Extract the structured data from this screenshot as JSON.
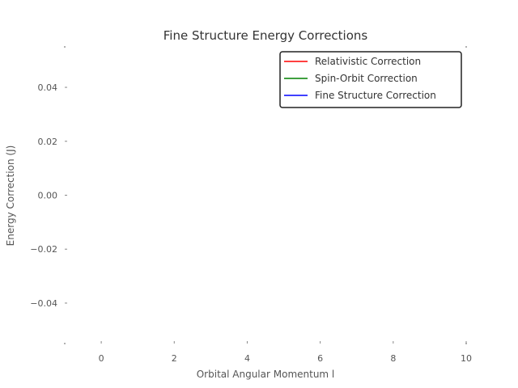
{
  "chart_data": {
    "type": "line",
    "title": "Fine Structure Energy Corrections",
    "xlabel": "Orbital Angular Momentum l",
    "ylabel": "Energy Correction (J)",
    "xlim": [
      -1,
      10
    ],
    "ylim": [
      -0.055,
      0.055
    ],
    "xticks": [
      0,
      2,
      4,
      6,
      8,
      10
    ],
    "xtick_labels": [
      "0",
      "2",
      "4",
      "6",
      "8",
      "10"
    ],
    "yticks": [
      0.04,
      0.02,
      0.0,
      -0.02,
      -0.04
    ],
    "ytick_labels": [
      "0.04",
      "0.02",
      "0.00",
      "−0.02",
      "−0.04"
    ],
    "grid": false,
    "legend_position": "top-right",
    "series": [
      {
        "name": "Relativistic Correction",
        "color": "#ff0000",
        "x": [],
        "y": []
      },
      {
        "name": "Spin-Orbit Correction",
        "color": "#008000",
        "x": [],
        "y": []
      },
      {
        "name": "Fine Structure Correction",
        "color": "#0000ff",
        "x": [],
        "y": []
      }
    ]
  }
}
